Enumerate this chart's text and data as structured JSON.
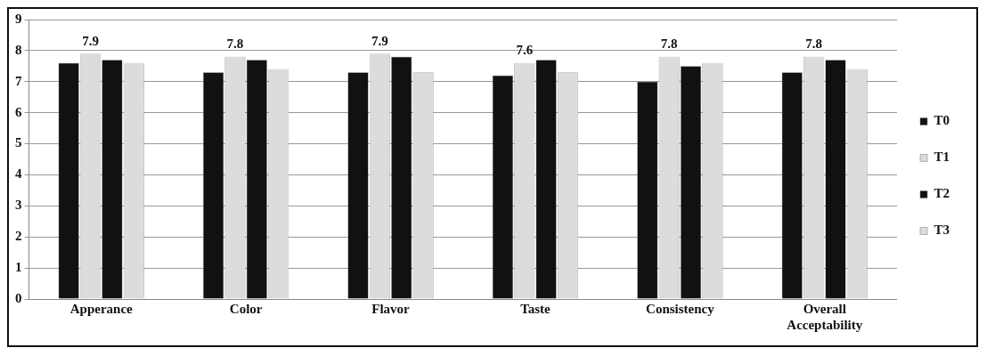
{
  "chart_data": {
    "type": "bar",
    "categories": [
      "Apperance",
      "Color",
      "Flavor",
      "Taste",
      "Consistency",
      "Overall Acceptability"
    ],
    "series": [
      {
        "name": "T0",
        "color": "#111111",
        "values": [
          7.6,
          7.3,
          7.3,
          7.2,
          7.0,
          7.3
        ]
      },
      {
        "name": "T1",
        "color": "#dcdcdc",
        "values": [
          7.9,
          7.8,
          7.9,
          7.6,
          7.8,
          7.8
        ],
        "value_labels": [
          "7.9",
          "7.8",
          "7.9",
          "7.6",
          "7.8",
          "7.8"
        ]
      },
      {
        "name": "T2",
        "color": "#111111",
        "values": [
          7.7,
          7.7,
          7.8,
          7.7,
          7.5,
          7.7
        ]
      },
      {
        "name": "T3",
        "color": "#dcdcdc",
        "values": [
          7.6,
          7.4,
          7.3,
          7.3,
          7.6,
          7.4
        ]
      }
    ],
    "ylim": [
      0,
      9
    ],
    "yticks": [
      0,
      1,
      2,
      3,
      4,
      5,
      6,
      7,
      8,
      9
    ],
    "grid": "y",
    "legend": "right"
  }
}
